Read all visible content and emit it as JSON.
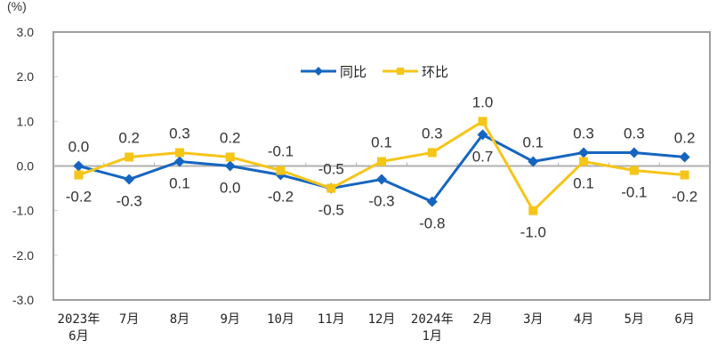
{
  "chart_data": {
    "type": "line",
    "title": "",
    "unit_label": "(%)",
    "xlabel": "",
    "ylabel": "(%)",
    "ylim": [
      -3.0,
      3.0
    ],
    "yticks": [
      "3.0",
      "2.0",
      "1.0",
      "0.0",
      "-1.0",
      "-2.0",
      "-3.0"
    ],
    "grid": false,
    "legend_position": "top-center",
    "categories": [
      [
        "2023年",
        "6月"
      ],
      [
        "7月"
      ],
      [
        "8月"
      ],
      [
        "9月"
      ],
      [
        "10月"
      ],
      [
        "11月"
      ],
      [
        "12月"
      ],
      [
        "2024年",
        "1月"
      ],
      [
        "2月"
      ],
      [
        "3月"
      ],
      [
        "4月"
      ],
      [
        "5月"
      ],
      [
        "6月"
      ]
    ],
    "series": [
      {
        "name": "同比",
        "color": "#1565C0",
        "marker": "diamond",
        "values": [
          0.0,
          -0.3,
          0.1,
          0.0,
          -0.2,
          -0.5,
          -0.3,
          -0.8,
          0.7,
          0.1,
          0.3,
          0.3,
          0.2
        ],
        "labels": [
          "0.0",
          "-0.3",
          "0.1",
          "0.0",
          "-0.2",
          "-0.5",
          "-0.3",
          "-0.8",
          "0.7",
          "0.1",
          "0.3",
          "0.3",
          "0.2"
        ]
      },
      {
        "name": "环比",
        "color": "#F5C518",
        "marker": "square",
        "values": [
          -0.2,
          0.2,
          0.3,
          0.2,
          -0.1,
          -0.5,
          0.1,
          0.3,
          1.0,
          -1.0,
          0.1,
          -0.1,
          -0.2
        ],
        "labels": [
          "-0.2",
          "0.2",
          "0.3",
          "0.2",
          "-0.1",
          "-0.5",
          "0.1",
          "0.3",
          "1.0",
          "-1.0",
          "0.1",
          "-0.1",
          "-0.2"
        ]
      }
    ],
    "annotations": {
      "同比_label_pos": [
        "above",
        "below",
        "below",
        "below",
        "below",
        "below",
        "below",
        "below",
        "below",
        "above",
        "above",
        "above",
        "above"
      ],
      "环比_label_pos": [
        "below",
        "above",
        "above",
        "above",
        "above",
        "above",
        "above",
        "above",
        "above",
        "below",
        "below",
        "below",
        "below"
      ]
    }
  }
}
